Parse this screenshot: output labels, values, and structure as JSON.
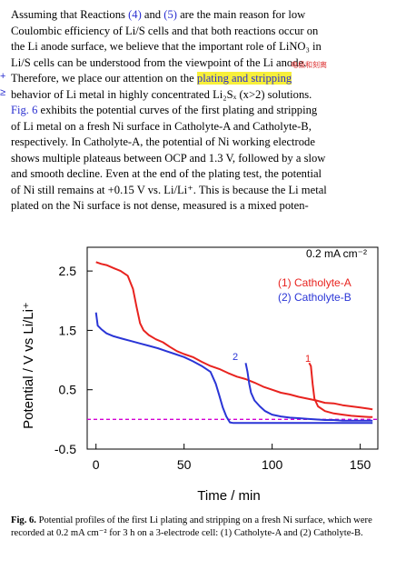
{
  "paragraph": {
    "lines": [
      "Assuming that Reactions (4) and (5) are the main reason for low",
      "Coulombic efficiency of Li/S cells and that both reactions occur on",
      "the Li anode surface, we believe that the important role of LiNO₃ in",
      "Li/S cells can be understood from the viewpoint of the Li anode.",
      "Therefore, we place our attention on the plating and stripping",
      "behavior of Li metal in highly concentrated Li₂Sₓ (x>2) solutions.",
      "Fig. 6 exhibits the potential curves of the first plating and stripping",
      "of Li metal on a fresh Ni surface in Catholyte-A and Catholyte-B,",
      "respectively. In Catholyte-A, the potential of Ni working electrode",
      "shows multiple plateaus between OCP and 1.3 V, followed by a slow",
      "and smooth decline. Even at the end of the plating test, the potential",
      "of Ni still remains at +0.15 V vs. Li/Li⁺. This is because the Li metal",
      "plated on the Ni surface is not dense, measured is a mixed poten-"
    ],
    "line4_prefix": "Therefore, we place our attention on the ",
    "line4_highlight": "plating and stripping",
    "line6_prefix": "",
    "line6_link": "Fig. 6",
    "line6_rest": " exhibits the potential curves of the first plating and stripping",
    "ref4": "(4)",
    "ref5": "(5)",
    "note_chars": "电极和刻离",
    "side_mark_1": "+",
    "side_mark_2": "≥"
  },
  "chart_data": {
    "type": "line",
    "title": "",
    "xlabel": "Time / min",
    "ylabel": "Potential / V vs Li/Li⁺",
    "xlim": [
      -5,
      160
    ],
    "ylim": [
      -0.5,
      2.9
    ],
    "xticks": [
      0,
      50,
      100,
      150
    ],
    "yticks": [
      -0.5,
      0.5,
      1.5,
      2.5
    ],
    "ytick_labels": [
      "-0.5",
      "0.5",
      "1.5",
      "2.5"
    ],
    "current_label": "0.2 mA cm⁻²",
    "legend": [
      "(1) Catholyte-A",
      "(2) Catholyte-B"
    ],
    "legend_position": "top-right",
    "curve_labels": [
      "1",
      "2"
    ],
    "reference_line": {
      "y": 0.0,
      "color": "#d400d4",
      "style": "dashed"
    },
    "series": [
      {
        "name": "(1) Catholyte-A",
        "color": "#e8231f",
        "x": [
          0,
          3,
          6,
          10,
          14,
          18,
          21,
          23,
          25,
          27,
          30,
          34,
          38,
          42,
          46,
          50,
          55,
          60,
          65,
          70,
          75,
          80,
          85,
          90,
          95,
          100,
          105,
          110,
          115,
          120,
          125,
          130,
          135,
          140,
          145,
          150,
          155,
          157
        ],
        "y": [
          2.65,
          2.62,
          2.6,
          2.55,
          2.5,
          2.42,
          2.2,
          1.9,
          1.62,
          1.5,
          1.42,
          1.35,
          1.3,
          1.22,
          1.15,
          1.1,
          1.05,
          0.97,
          0.9,
          0.85,
          0.78,
          0.72,
          0.68,
          0.62,
          0.55,
          0.5,
          0.45,
          0.42,
          0.38,
          0.35,
          0.32,
          0.28,
          0.27,
          0.24,
          0.22,
          0.2,
          0.18,
          0.17
        ]
      },
      {
        "name": "(1) Catholyte-A stripping",
        "color": "#e8231f",
        "x": [
          121,
          122,
          123,
          124,
          126,
          130,
          135,
          140,
          145,
          150,
          155,
          157
        ],
        "y": [
          0.95,
          0.9,
          0.6,
          0.35,
          0.22,
          0.14,
          0.1,
          0.08,
          0.06,
          0.05,
          0.04,
          0.04
        ]
      },
      {
        "name": "(2) Catholyte-B",
        "color": "#2a35d6",
        "x": [
          0,
          1,
          3,
          6,
          10,
          15,
          20,
          25,
          30,
          35,
          40,
          45,
          50,
          55,
          60,
          65,
          68,
          70,
          72,
          74,
          76,
          78,
          80,
          85,
          90,
          95,
          100,
          105,
          110,
          115,
          120,
          125,
          130,
          135,
          140,
          145,
          150,
          155,
          157
        ],
        "y": [
          1.8,
          1.58,
          1.52,
          1.45,
          1.4,
          1.36,
          1.32,
          1.28,
          1.24,
          1.2,
          1.15,
          1.1,
          1.05,
          0.98,
          0.9,
          0.8,
          0.6,
          0.4,
          0.2,
          0.05,
          -0.05,
          -0.06,
          -0.06,
          -0.06,
          -0.06,
          -0.06,
          -0.06,
          -0.06,
          -0.06,
          -0.06,
          -0.06,
          -0.06,
          -0.06,
          -0.06,
          -0.06,
          -0.06,
          -0.06,
          -0.06,
          -0.06
        ]
      },
      {
        "name": "(2) Catholyte-B stripping",
        "color": "#2a35d6",
        "x": [
          85,
          86,
          87,
          88,
          90,
          93,
          96,
          100,
          105,
          110,
          115,
          120,
          125,
          130,
          135,
          140,
          145,
          150,
          155,
          157
        ],
        "y": [
          0.95,
          0.8,
          0.6,
          0.45,
          0.32,
          0.22,
          0.14,
          0.08,
          0.05,
          0.03,
          0.02,
          0.01,
          0.0,
          -0.01,
          -0.01,
          -0.02,
          -0.02,
          -0.02,
          -0.02,
          -0.02
        ]
      }
    ]
  },
  "caption": {
    "label": "Fig. 6.",
    "text": " Potential profiles of the first Li plating and stripping on a fresh Ni surface, which were recorded at 0.2 mA cm⁻² for 3 h on a 3-electrode cell: (1) Catholyte-A and (2) Catholyte-B."
  }
}
